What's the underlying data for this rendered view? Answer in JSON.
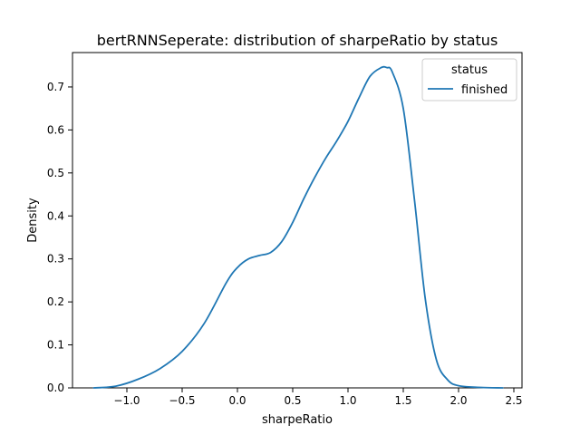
{
  "chart_data": {
    "type": "line",
    "title": "bertRNNSeperate: distribution of sharpeRatio by status",
    "xlabel": "sharpeRatio",
    "ylabel": "Density",
    "xlim": [
      -1.5,
      2.5
    ],
    "ylim": [
      0,
      0.78
    ],
    "xticks": [
      -1.0,
      -0.5,
      0.0,
      0.5,
      1.0,
      1.5,
      2.0,
      2.5
    ],
    "xtick_labels": [
      "−1.0",
      "−0.5",
      "0.0",
      "0.5",
      "1.0",
      "1.5",
      "2.0",
      "2.5"
    ],
    "yticks": [
      0.0,
      0.1,
      0.2,
      0.3,
      0.4,
      0.5,
      0.6,
      0.7
    ],
    "ytick_labels": [
      "0.0",
      "0.1",
      "0.2",
      "0.3",
      "0.4",
      "0.5",
      "0.6",
      "0.7"
    ],
    "grid": false,
    "legend": {
      "title": "status",
      "position": "top-right"
    },
    "series": [
      {
        "name": "finished",
        "color": "#1f77b4",
        "x": [
          -1.3,
          -1.1,
          -0.9,
          -0.7,
          -0.5,
          -0.3,
          -0.1,
          0.0,
          0.1,
          0.2,
          0.3,
          0.4,
          0.5,
          0.6,
          0.7,
          0.8,
          0.9,
          1.0,
          1.1,
          1.2,
          1.3,
          1.35,
          1.4,
          1.5,
          1.6,
          1.7,
          1.8,
          1.9,
          2.0,
          2.2,
          2.4
        ],
        "y": [
          0.0,
          0.004,
          0.02,
          0.045,
          0.085,
          0.15,
          0.245,
          0.28,
          0.3,
          0.308,
          0.315,
          0.34,
          0.385,
          0.44,
          0.49,
          0.535,
          0.575,
          0.62,
          0.675,
          0.725,
          0.745,
          0.745,
          0.735,
          0.65,
          0.44,
          0.205,
          0.065,
          0.019,
          0.005,
          0.001,
          0.0
        ]
      }
    ]
  }
}
